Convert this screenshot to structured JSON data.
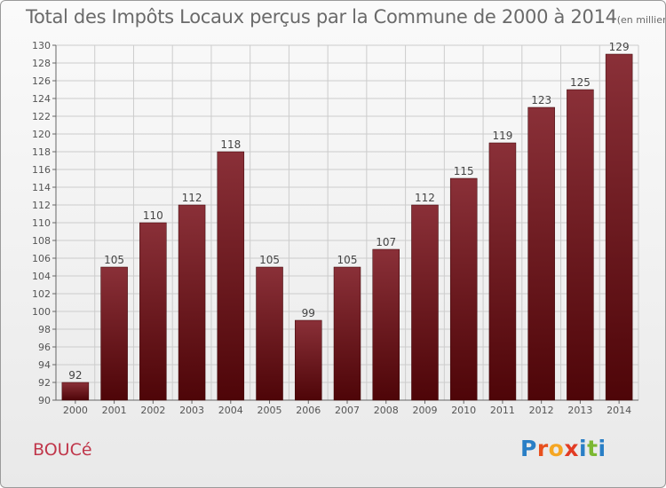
{
  "header": {
    "title": "Total des Impôts Locaux perçus par la Commune de 2000 à 2014",
    "unit": "(en milliers d'€)"
  },
  "footer": {
    "commune": "BOUCé",
    "logo_letters": [
      "P",
      "r",
      "o",
      "x",
      "i",
      "t",
      "i"
    ]
  },
  "colors": {
    "bar_light": "#8a3038",
    "bar_dark": "#4e0508",
    "grid": "#cccccc",
    "commune": "#c0364a",
    "logo": [
      "#2a7fc6",
      "#e8501e",
      "#f5a623",
      "#e23c24",
      "#2a7fc6",
      "#7cb832",
      "#2a7fc6"
    ]
  },
  "chart_data": {
    "type": "bar",
    "title": "Total des Impôts Locaux perçus par la Commune de 2000 à 2014",
    "xlabel": "",
    "ylabel": "",
    "categories": [
      "2000",
      "2001",
      "2002",
      "2003",
      "2004",
      "2005",
      "2006",
      "2007",
      "2008",
      "2009",
      "2010",
      "2011",
      "2012",
      "2013",
      "2014"
    ],
    "values": [
      92,
      105,
      110,
      112,
      118,
      105,
      99,
      105,
      107,
      112,
      115,
      119,
      123,
      125,
      129
    ],
    "ylim": [
      90,
      130
    ],
    "yticks": [
      90,
      92,
      94,
      96,
      98,
      100,
      102,
      104,
      106,
      108,
      110,
      112,
      114,
      116,
      118,
      120,
      122,
      124,
      126,
      128,
      130
    ],
    "grid": true,
    "legend": "none"
  }
}
